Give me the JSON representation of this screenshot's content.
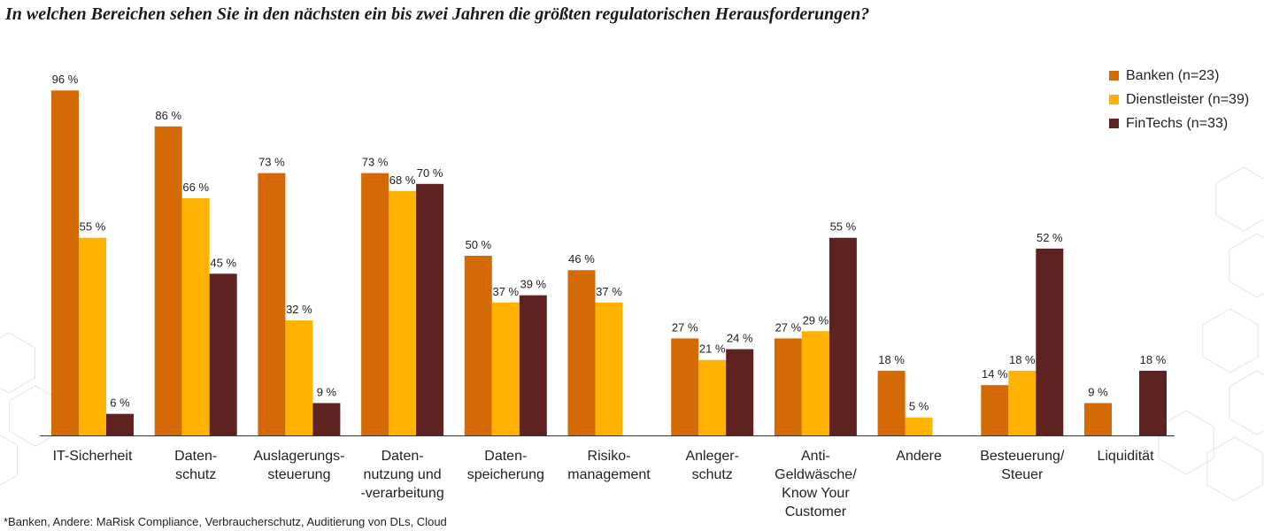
{
  "title": "In welchen Bereichen sehen Sie in den nächsten ein bis zwei Jahren die größten regulatorischen Herausforderungen?",
  "footnote": "*Banken, Andere: MaRisk Compliance, Verbraucherschutz, Auditierung von DLs, Cloud",
  "colors": {
    "Banken": "#d46a03",
    "Dienstleister": "#ffb201",
    "FinTechs": "#5e2221"
  },
  "chart_data": {
    "type": "bar",
    "title": "In welchen Bereichen sehen Sie in den nächsten ein bis zwei Jahren die größten regulatorischen Herausforderungen?",
    "categories": [
      [
        "IT-Sicherheit"
      ],
      [
        "Daten-",
        "schutz"
      ],
      [
        "Auslagerungs-",
        "steuerung"
      ],
      [
        "Daten-",
        "nutzung und",
        "-verarbeitung"
      ],
      [
        "Daten-",
        "speicherung"
      ],
      [
        "Risiko-",
        "management"
      ],
      [
        "Anleger-",
        "schutz"
      ],
      [
        "Anti-",
        "Geldwäsche/",
        "Know Your",
        "Customer"
      ],
      [
        "Andere"
      ],
      [
        "Besteuerung/",
        "Steuer"
      ],
      [
        "Liquidität"
      ]
    ],
    "series": [
      {
        "name": "Banken (n=23)",
        "values": [
          96,
          86,
          73,
          73,
          50,
          46,
          27,
          27,
          18,
          14,
          9
        ]
      },
      {
        "name": "Dienstleister (n=39)",
        "values": [
          55,
          66,
          32,
          68,
          37,
          37,
          21,
          29,
          5,
          18,
          null
        ]
      },
      {
        "name": "FinTechs (n=33)",
        "values": [
          6,
          45,
          9,
          70,
          39,
          null,
          24,
          55,
          null,
          52,
          18
        ]
      }
    ],
    "value_suffix": " %",
    "ylim": [
      0,
      100
    ],
    "grid": false,
    "legend_position": "top-right"
  }
}
